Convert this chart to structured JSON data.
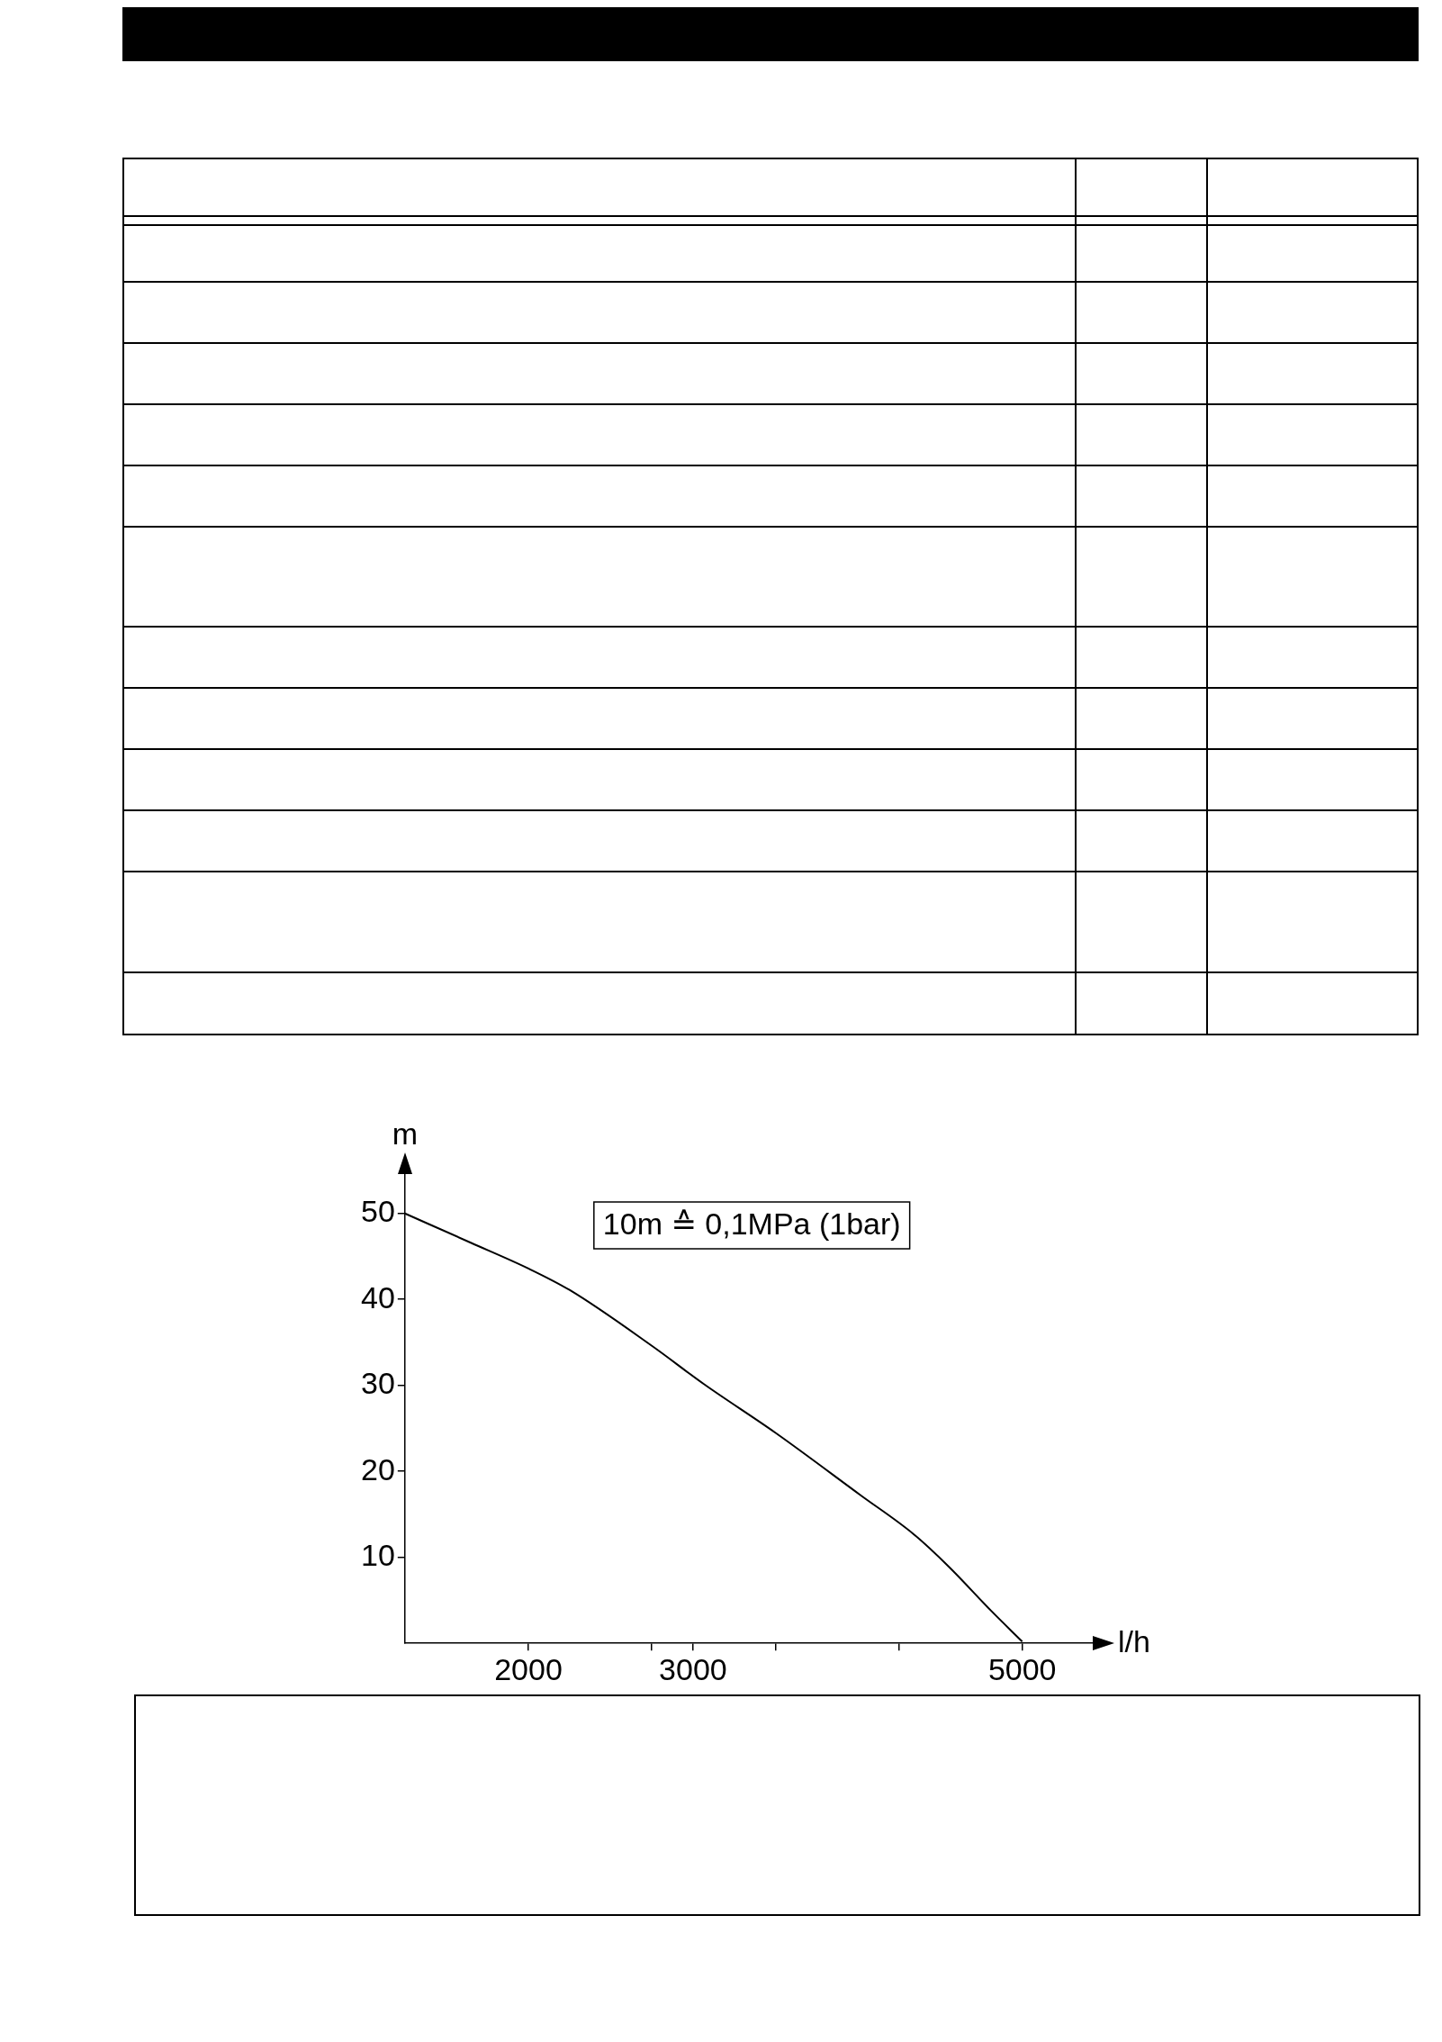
{
  "chart_data": {
    "type": "line",
    "xlabel": "l/h",
    "ylabel": "m",
    "annotations": [
      "10m ≙ 0,1MPa (1bar)"
    ],
    "series": [
      {
        "color": "#000000",
        "x": [
          1250,
          1650,
          2000,
          2250,
          2750,
          3070,
          3500,
          4020,
          4340,
          4560,
          4810,
          5000
        ],
        "values": [
          50,
          46.6,
          43.6,
          41.1,
          34.6,
          30.1,
          24.5,
          17.2,
          12.7,
          8.8,
          3.8,
          0.2
        ]
      }
    ],
    "xlim": [
      1250,
      5450
    ],
    "xticks": [
      2000,
      {
        "value": 2750,
        "label": null
      },
      3000,
      {
        "value": 3500,
        "label": null
      },
      {
        "value": 4250,
        "label": null
      },
      5000
    ],
    "ylim": [
      0,
      55
    ],
    "yticks": [
      10,
      20,
      30,
      40,
      50
    ],
    "grid": false,
    "legend": false,
    "marker": "none",
    "line_style": "solid"
  }
}
